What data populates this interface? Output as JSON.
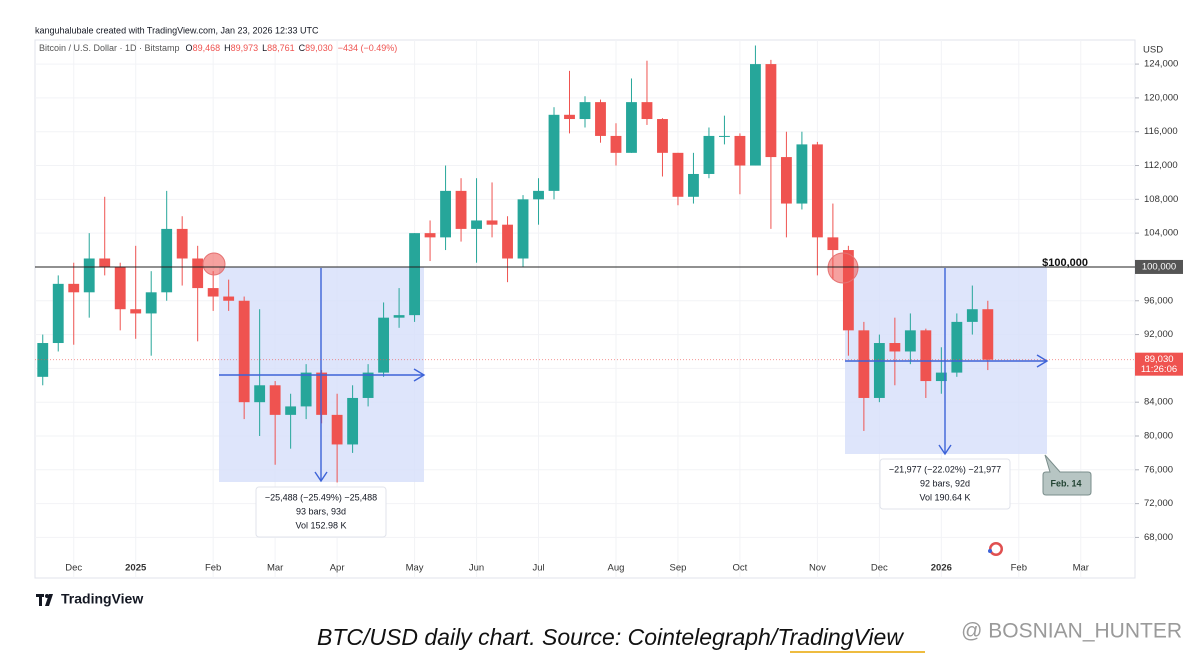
{
  "chart_data": {
    "type": "candlestick",
    "credit": "kanguhalubale created with TradingView.com, Jan 23, 2026 12:33 UTC",
    "symbol": "Bitcoin / U.S. Dollar · 1D · Bitstamp",
    "quote": [
      {
        "k": "O",
        "v": "89,468"
      },
      {
        "k": "H",
        "v": "89,973"
      },
      {
        "k": "L",
        "v": "88,761"
      },
      {
        "k": "C",
        "v": "89,030"
      }
    ],
    "change": "−434 (−0.49%)",
    "currency": "USD",
    "ylim": [
      63200,
      126850
    ],
    "yticks": [
      {
        "value": 68000,
        "label": "68,000"
      },
      {
        "value": 72000,
        "label": "72,000"
      },
      {
        "value": 76000,
        "label": "76,000"
      },
      {
        "value": 80000,
        "label": "80,000"
      },
      {
        "value": 84000,
        "label": "84,000"
      },
      {
        "value": 88000,
        "label": "88,000"
      },
      {
        "value": 92000,
        "label": "92,000"
      },
      {
        "value": 96000,
        "label": "96,000"
      },
      {
        "value": 100000,
        "label": "100,000"
      },
      {
        "value": 104000,
        "label": "104,000"
      },
      {
        "value": 108000,
        "label": "108,000"
      },
      {
        "value": 112000,
        "label": "112,000"
      },
      {
        "value": 116000,
        "label": "116,000"
      },
      {
        "value": 120000,
        "label": "120,000"
      },
      {
        "value": 124000,
        "label": "124,000"
      }
    ],
    "categories": [
      null,
      null,
      "Dec",
      null,
      null,
      null,
      "2025",
      null,
      null,
      null,
      null,
      "Feb",
      null,
      null,
      null,
      "Mar",
      null,
      null,
      null,
      "Apr",
      null,
      null,
      null,
      null,
      "May",
      null,
      null,
      null,
      "Jun",
      null,
      null,
      null,
      "Jul",
      null,
      null,
      null,
      null,
      "Aug",
      null,
      null,
      null,
      "Sep",
      null,
      null,
      null,
      "Oct",
      null,
      null,
      null,
      null,
      "Nov",
      null,
      null,
      null,
      "Dec",
      null,
      null,
      null,
      "2026",
      null,
      null,
      null,
      null,
      "Feb",
      null,
      null,
      null,
      "Mar",
      null,
      null,
      null
    ],
    "bold_categories": [
      "2025",
      "2026"
    ],
    "up_color": "#26a69a",
    "down_color": "#ef5350",
    "ohlc": [
      [
        87000,
        92000,
        86000,
        91000
      ],
      [
        91000,
        99000,
        90000,
        98000
      ],
      [
        98000,
        100500,
        90800,
        97000
      ],
      [
        97000,
        104000,
        94000,
        101000
      ],
      [
        101000,
        108300,
        99000,
        100000
      ],
      [
        100000,
        100500,
        92500,
        95000
      ],
      [
        95000,
        102500,
        91500,
        94500
      ],
      [
        94500,
        99500,
        89500,
        97000
      ],
      [
        97000,
        109000,
        96000,
        104500
      ],
      [
        104500,
        106000,
        97800,
        101000
      ],
      [
        101000,
        102500,
        91200,
        97500
      ],
      [
        97500,
        99500,
        94800,
        96500
      ],
      [
        96500,
        98500,
        94800,
        96000
      ],
      [
        96000,
        96500,
        82000,
        84000
      ],
      [
        84000,
        95000,
        80000,
        86000
      ],
      [
        86000,
        86500,
        76600,
        82500
      ],
      [
        82500,
        85000,
        78500,
        83500
      ],
      [
        83500,
        88500,
        82000,
        87500
      ],
      [
        87500,
        87800,
        81500,
        82500
      ],
      [
        82500,
        85000,
        74500,
        79000
      ],
      [
        79000,
        86000,
        78000,
        84500
      ],
      [
        84500,
        88500,
        83500,
        87500
      ],
      [
        87500,
        95800,
        87000,
        94000
      ],
      [
        94000,
        97500,
        92800,
        94300
      ],
      [
        94300,
        104000,
        93500,
        104000
      ],
      [
        104000,
        105500,
        100700,
        103500
      ],
      [
        103500,
        112000,
        102000,
        109000
      ],
      [
        109000,
        110500,
        103000,
        104500
      ],
      [
        104500,
        110500,
        100500,
        105500
      ],
      [
        105500,
        110000,
        103500,
        105000
      ],
      [
        105000,
        106000,
        98200,
        101000
      ],
      [
        101000,
        108500,
        100000,
        108000
      ],
      [
        108000,
        110500,
        105000,
        109000
      ],
      [
        109000,
        118900,
        108000,
        118000
      ],
      [
        118000,
        123200,
        115800,
        117500
      ],
      [
        117500,
        120200,
        116500,
        119500
      ],
      [
        119500,
        119800,
        114700,
        115500
      ],
      [
        115500,
        117000,
        112000,
        113500
      ],
      [
        113500,
        122300,
        113500,
        119500
      ],
      [
        119500,
        124400,
        116800,
        117500
      ],
      [
        117500,
        117600,
        110700,
        113500
      ],
      [
        113500,
        113500,
        107300,
        108300
      ],
      [
        108300,
        113500,
        107500,
        111000
      ],
      [
        111000,
        116500,
        110500,
        115500
      ],
      [
        115500,
        117900,
        114500,
        115500
      ],
      [
        115500,
        115800,
        108600,
        112000
      ],
      [
        112000,
        126200,
        112000,
        124000
      ],
      [
        124000,
        124500,
        104500,
        113000
      ],
      [
        113000,
        116000,
        103500,
        107500
      ],
      [
        107500,
        116000,
        106800,
        114500
      ],
      [
        114500,
        114800,
        99000,
        103500
      ],
      [
        103500,
        107500,
        98500,
        102000
      ],
      [
        102000,
        102500,
        89500,
        92500
      ],
      [
        92500,
        93500,
        80600,
        84500
      ],
      [
        84500,
        92000,
        84000,
        91000
      ],
      [
        91000,
        94000,
        86000,
        90000
      ],
      [
        90000,
        94500,
        88500,
        92500
      ],
      [
        92500,
        92700,
        84500,
        86500
      ],
      [
        86500,
        90500,
        85000,
        87500
      ],
      [
        87500,
        94500,
        87000,
        93500
      ],
      [
        93500,
        97800,
        92000,
        95000
      ],
      [
        95000,
        96000,
        87800,
        89030
      ],
      null,
      null,
      null,
      null,
      null,
      null,
      null,
      null,
      null
    ],
    "level": {
      "value": 100000,
      "label": "$100,000",
      "tag": "100,000"
    },
    "last_price": {
      "tag": "89,030",
      "countdown": "11:26:06"
    },
    "measures": [
      {
        "lines": [
          "−25,488 (−25.49%) −25,488",
          "93 bars, 93d",
          "Vol 152.98 K"
        ]
      },
      {
        "lines": [
          "−21,977 (−22.02%) −21,977",
          "92 bars, 92d",
          "Vol 190.64 K"
        ]
      }
    ],
    "callout": "Feb. 14",
    "brand": "TradingView",
    "caption": "BTC/USD daily chart. Source: Cointelegraph/TradingView",
    "watermark": "@ BOSNIAN_HUNTER"
  }
}
